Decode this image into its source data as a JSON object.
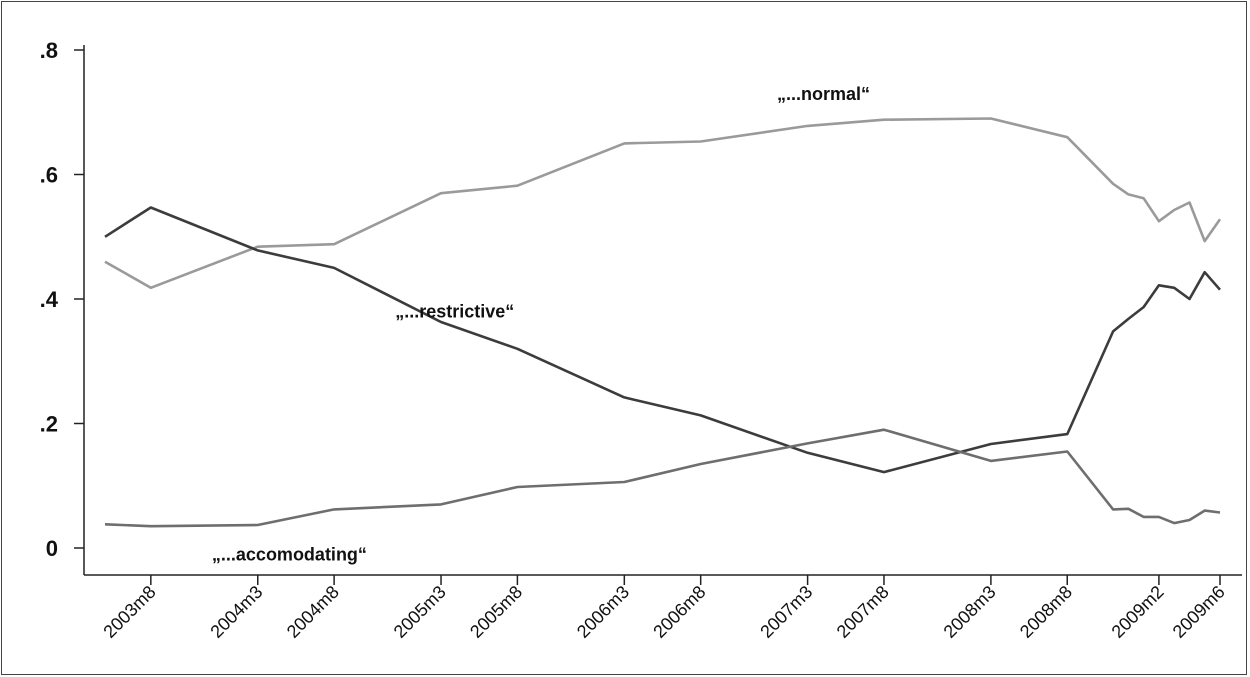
{
  "chart_data": {
    "type": "line",
    "title": "",
    "xlabel": "",
    "ylabel": "",
    "ylim": [
      0,
      0.8
    ],
    "yticks": [
      {
        "value": 0,
        "label": "0"
      },
      {
        "value": 0.2,
        "label": ".2"
      },
      {
        "value": 0.4,
        "label": ".4"
      },
      {
        "value": 0.6,
        "label": ".6"
      },
      {
        "value": 0.8,
        "label": ".8"
      }
    ],
    "xlim": [
      "2003-05",
      "2009-06"
    ],
    "xticks": [
      "2003m8",
      "2004m3",
      "2004m8",
      "2005m3",
      "2005m8",
      "2006m3",
      "2006m8",
      "2007m3",
      "2007m8",
      "2008m3",
      "2008m8",
      "2009m2",
      "2009m6"
    ],
    "grid": false,
    "legend": "none",
    "annotations": [
      {
        "text": "„...normal“",
        "series": "normal",
        "x": "2007-01",
        "y": 0.72
      },
      {
        "text": "„...restrictive“",
        "series": "restrictive",
        "x": "2004-12",
        "y": 0.37
      },
      {
        "text": "„...accomodating“",
        "series": "accomodating",
        "x": "2003-12",
        "y": -0.02
      }
    ],
    "series": [
      {
        "key": "normal",
        "color": "#9a9a9a",
        "points": [
          [
            "2003-05",
            0.46
          ],
          [
            "2003-08",
            0.418
          ],
          [
            "2004-03",
            0.484
          ],
          [
            "2004-08",
            0.488
          ],
          [
            "2005-03",
            0.57
          ],
          [
            "2005-08",
            0.582
          ],
          [
            "2006-03",
            0.65
          ],
          [
            "2006-08",
            0.653
          ],
          [
            "2007-03",
            0.678
          ],
          [
            "2007-08",
            0.688
          ],
          [
            "2008-03",
            0.69
          ],
          [
            "2008-08",
            0.66
          ],
          [
            "2008-11",
            0.585
          ],
          [
            "2008-12",
            0.568
          ],
          [
            "2009-01",
            0.562
          ],
          [
            "2009-02",
            0.525
          ],
          [
            "2009-03",
            0.543
          ],
          [
            "2009-04",
            0.555
          ],
          [
            "2009-05",
            0.493
          ],
          [
            "2009-06",
            0.528
          ]
        ]
      },
      {
        "key": "restrictive",
        "color": "#3c3c3c",
        "points": [
          [
            "2003-05",
            0.5
          ],
          [
            "2003-08",
            0.547
          ],
          [
            "2004-03",
            0.478
          ],
          [
            "2004-08",
            0.45
          ],
          [
            "2005-03",
            0.363
          ],
          [
            "2005-08",
            0.32
          ],
          [
            "2006-03",
            0.242
          ],
          [
            "2006-08",
            0.213
          ],
          [
            "2007-03",
            0.153
          ],
          [
            "2007-08",
            0.122
          ],
          [
            "2008-03",
            0.167
          ],
          [
            "2008-08",
            0.183
          ],
          [
            "2008-11",
            0.348
          ],
          [
            "2008-12",
            0.368
          ],
          [
            "2009-01",
            0.387
          ],
          [
            "2009-02",
            0.422
          ],
          [
            "2009-03",
            0.418
          ],
          [
            "2009-04",
            0.4
          ],
          [
            "2009-05",
            0.443
          ],
          [
            "2009-06",
            0.415
          ]
        ]
      },
      {
        "key": "accomodating",
        "color": "#6e6e6e",
        "points": [
          [
            "2003-05",
            0.038
          ],
          [
            "2003-08",
            0.035
          ],
          [
            "2004-03",
            0.037
          ],
          [
            "2004-08",
            0.062
          ],
          [
            "2005-03",
            0.07
          ],
          [
            "2005-08",
            0.098
          ],
          [
            "2006-03",
            0.106
          ],
          [
            "2006-08",
            0.135
          ],
          [
            "2007-03",
            0.168
          ],
          [
            "2007-08",
            0.19
          ],
          [
            "2008-03",
            0.14
          ],
          [
            "2008-08",
            0.155
          ],
          [
            "2008-11",
            0.062
          ],
          [
            "2008-12",
            0.063
          ],
          [
            "2009-01",
            0.05
          ],
          [
            "2009-02",
            0.05
          ],
          [
            "2009-03",
            0.04
          ],
          [
            "2009-04",
            0.045
          ],
          [
            "2009-05",
            0.06
          ],
          [
            "2009-06",
            0.057
          ]
        ]
      }
    ]
  }
}
